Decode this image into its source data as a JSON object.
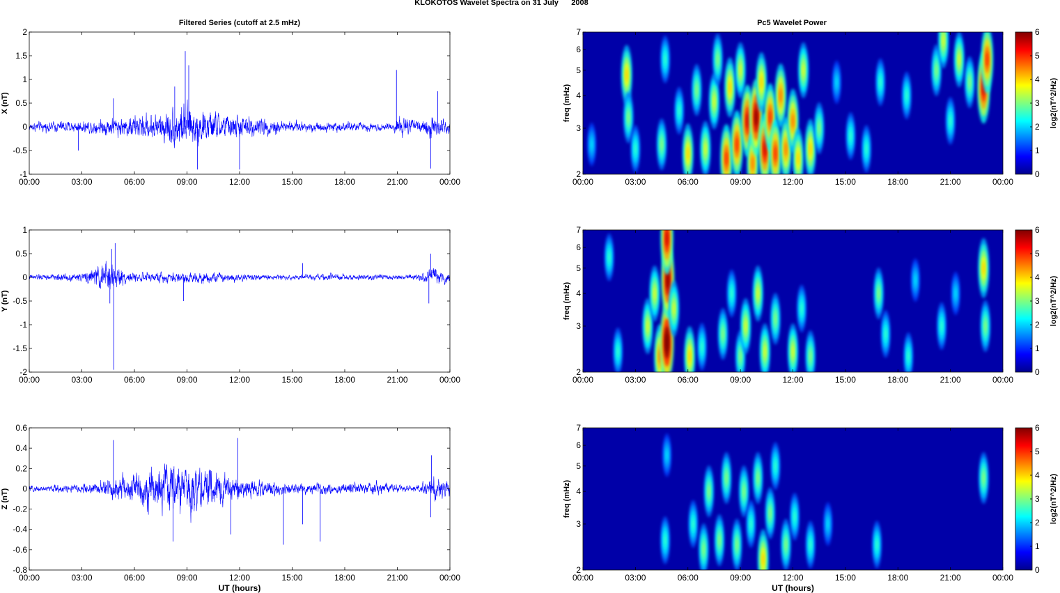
{
  "figure": {
    "title": "KLOKOTOS Wavelet Spectra on 31 July      2008",
    "left_column_title": "Filtered Series (cutoff at 2.5 mHz)",
    "right_column_title": "Pc5 Wavelet Power",
    "xlabel": "UT (hours)"
  },
  "chart_data": [
    {
      "type": "line",
      "panel": "time-series-x",
      "ylabel": "X (nT)",
      "ylim": [
        -1,
        2
      ],
      "yticks": [
        "-1",
        "-0.5",
        "0",
        "0.5",
        "1",
        "1.5",
        "2"
      ],
      "xlim": [
        0,
        24
      ],
      "xticks": [
        "00:00",
        "03:00",
        "06:00",
        "09:00",
        "12:00",
        "15:00",
        "18:00",
        "21:00",
        "00:00"
      ],
      "line_color": "#0000ff",
      "envelope": {
        "x": [
          0,
          1,
          2,
          3,
          4,
          5,
          6,
          7,
          8,
          8.5,
          9,
          9.5,
          10,
          11,
          12,
          13,
          14,
          15,
          16,
          17,
          18,
          19,
          20,
          20.9,
          21,
          21.5,
          22,
          22.5,
          22.8,
          23,
          23.5,
          24
        ],
        "amp": [
          0.12,
          0.13,
          0.15,
          0.15,
          0.2,
          0.25,
          0.3,
          0.35,
          0.45,
          0.55,
          0.6,
          0.5,
          0.45,
          0.35,
          0.3,
          0.25,
          0.2,
          0.15,
          0.14,
          0.13,
          0.13,
          0.12,
          0.1,
          0.12,
          0.3,
          0.25,
          0.15,
          0.15,
          0.3,
          0.4,
          0.25,
          0.2
        ]
      },
      "spikes": [
        {
          "x": 8.9,
          "y": 1.6
        },
        {
          "x": 9.1,
          "y": 1.3
        },
        {
          "x": 8.3,
          "y": 0.85
        },
        {
          "x": 9.6,
          "y": -0.9
        },
        {
          "x": 12.0,
          "y": -0.9
        },
        {
          "x": 20.95,
          "y": 1.2
        },
        {
          "x": 22.9,
          "y": -0.88
        },
        {
          "x": 23.3,
          "y": 0.75
        },
        {
          "x": 4.8,
          "y": 0.6
        },
        {
          "x": 2.8,
          "y": -0.5
        }
      ]
    },
    {
      "type": "line",
      "panel": "time-series-y",
      "ylabel": "Y (nT)",
      "ylim": [
        -2,
        1
      ],
      "yticks": [
        "-2",
        "-1.5",
        "-1",
        "-0.5",
        "0",
        "0.5",
        "1"
      ],
      "xlim": [
        0,
        24
      ],
      "xticks": [
        "00:00",
        "03:00",
        "06:00",
        "09:00",
        "12:00",
        "15:00",
        "18:00",
        "21:00",
        "00:00"
      ],
      "line_color": "#0000ff",
      "envelope": {
        "x": [
          0,
          1,
          2,
          3,
          3.5,
          4,
          4.5,
          5,
          5.5,
          6,
          7,
          8,
          9,
          10,
          11,
          12,
          13,
          14,
          15,
          16,
          17,
          18,
          19,
          20,
          21,
          22,
          22.8,
          23,
          24
        ],
        "amp": [
          0.07,
          0.08,
          0.1,
          0.1,
          0.2,
          0.3,
          0.45,
          0.35,
          0.15,
          0.12,
          0.12,
          0.15,
          0.15,
          0.14,
          0.12,
          0.1,
          0.08,
          0.07,
          0.06,
          0.07,
          0.08,
          0.08,
          0.07,
          0.08,
          0.07,
          0.07,
          0.2,
          0.25,
          0.15
        ]
      },
      "spikes": [
        {
          "x": 4.83,
          "y": -1.95
        },
        {
          "x": 4.9,
          "y": 0.72
        },
        {
          "x": 4.6,
          "y": -0.55
        },
        {
          "x": 4.7,
          "y": 0.6
        },
        {
          "x": 22.8,
          "y": -0.55
        },
        {
          "x": 22.9,
          "y": 0.5
        },
        {
          "x": 8.8,
          "y": -0.5
        },
        {
          "x": 15.6,
          "y": 0.3
        }
      ]
    },
    {
      "type": "line",
      "panel": "time-series-z",
      "ylabel": "Z (nT)",
      "ylim": [
        -0.8,
        0.6
      ],
      "yticks": [
        "-0.8",
        "-0.6",
        "-0.4",
        "-0.2",
        "0",
        "0.2",
        "0.4",
        "0.6"
      ],
      "xlim": [
        0,
        24
      ],
      "xticks": [
        "00:00",
        "03:00",
        "06:00",
        "09:00",
        "12:00",
        "15:00",
        "18:00",
        "21:00",
        "00:00"
      ],
      "xlabel": "UT (hours)",
      "line_color": "#0000ff",
      "envelope": {
        "x": [
          0,
          1,
          2,
          3,
          4,
          5,
          6,
          7,
          8,
          9,
          10,
          11,
          12,
          13,
          14,
          15,
          16,
          17,
          18,
          19,
          20,
          21,
          22,
          22.8,
          23,
          24
        ],
        "amp": [
          0.03,
          0.04,
          0.05,
          0.06,
          0.08,
          0.15,
          0.2,
          0.25,
          0.3,
          0.3,
          0.25,
          0.2,
          0.15,
          0.1,
          0.08,
          0.07,
          0.06,
          0.06,
          0.06,
          0.07,
          0.07,
          0.05,
          0.04,
          0.1,
          0.15,
          0.08
        ]
      },
      "spikes": [
        {
          "x": 4.8,
          "y": 0.48
        },
        {
          "x": 8.2,
          "y": -0.52
        },
        {
          "x": 11.9,
          "y": 0.5
        },
        {
          "x": 11.5,
          "y": -0.45
        },
        {
          "x": 14.5,
          "y": -0.55
        },
        {
          "x": 16.6,
          "y": -0.52
        },
        {
          "x": 15.6,
          "y": -0.35
        },
        {
          "x": 22.95,
          "y": 0.33
        },
        {
          "x": 22.9,
          "y": -0.28
        }
      ]
    },
    {
      "type": "heatmap",
      "panel": "wavelet-power-x",
      "ylabel": "freq (mHz)",
      "ylim": [
        2,
        7
      ],
      "yscale": "log",
      "yticks": [
        "2",
        "3",
        "4",
        "5",
        "6",
        "7"
      ],
      "xlim": [
        0,
        24
      ],
      "xticks": [
        "00:00",
        "03:00",
        "06:00",
        "09:00",
        "12:00",
        "15:00",
        "18:00",
        "21:00",
        "00:00"
      ],
      "colorbar": {
        "label": "log2(nT^2/Hz)",
        "range": [
          0,
          6
        ],
        "ticks": [
          "0",
          "1",
          "2",
          "3",
          "4",
          "5",
          "6"
        ],
        "colormap": "jet"
      },
      "blobs": [
        {
          "t": 2.5,
          "f": 4.8,
          "v": 3.5
        },
        {
          "t": 2.6,
          "f": 3.3,
          "v": 2.5
        },
        {
          "t": 0.5,
          "f": 2.6,
          "v": 1.5
        },
        {
          "t": 3.0,
          "f": 2.5,
          "v": 2.0
        },
        {
          "t": 4.5,
          "f": 2.6,
          "v": 2.5
        },
        {
          "t": 4.7,
          "f": 5.5,
          "v": 2.0
        },
        {
          "t": 5.5,
          "f": 3.5,
          "v": 2.0
        },
        {
          "t": 6.0,
          "f": 2.4,
          "v": 3.5
        },
        {
          "t": 6.5,
          "f": 4.2,
          "v": 2.5
        },
        {
          "t": 7.0,
          "f": 2.5,
          "v": 3.0
        },
        {
          "t": 7.5,
          "f": 3.8,
          "v": 3.0
        },
        {
          "t": 7.7,
          "f": 5.5,
          "v": 2.5
        },
        {
          "t": 8.2,
          "f": 2.3,
          "v": 4.5
        },
        {
          "t": 8.4,
          "f": 4.3,
          "v": 3.5
        },
        {
          "t": 8.8,
          "f": 2.6,
          "v": 4.5
        },
        {
          "t": 9.0,
          "f": 5.0,
          "v": 3.0
        },
        {
          "t": 9.4,
          "f": 3.2,
          "v": 5.0
        },
        {
          "t": 9.7,
          "f": 2.2,
          "v": 4.0
        },
        {
          "t": 9.9,
          "f": 3.3,
          "v": 5.5
        },
        {
          "t": 10.2,
          "f": 4.5,
          "v": 3.5
        },
        {
          "t": 10.4,
          "f": 2.5,
          "v": 5.0
        },
        {
          "t": 10.7,
          "f": 3.3,
          "v": 4.5
        },
        {
          "t": 11.0,
          "f": 2.4,
          "v": 4.5
        },
        {
          "t": 11.3,
          "f": 4.0,
          "v": 4.0
        },
        {
          "t": 11.6,
          "f": 2.5,
          "v": 4.0
        },
        {
          "t": 12.0,
          "f": 3.2,
          "v": 4.0
        },
        {
          "t": 12.3,
          "f": 2.3,
          "v": 3.5
        },
        {
          "t": 12.6,
          "f": 5.0,
          "v": 3.0
        },
        {
          "t": 13.0,
          "f": 2.5,
          "v": 3.5
        },
        {
          "t": 13.5,
          "f": 3.0,
          "v": 2.5
        },
        {
          "t": 14.5,
          "f": 4.5,
          "v": 1.5
        },
        {
          "t": 15.3,
          "f": 2.8,
          "v": 2.0
        },
        {
          "t": 16.2,
          "f": 2.5,
          "v": 2.0
        },
        {
          "t": 17.0,
          "f": 4.5,
          "v": 2.0
        },
        {
          "t": 18.5,
          "f": 4.0,
          "v": 2.0
        },
        {
          "t": 20.2,
          "f": 5.0,
          "v": 2.5
        },
        {
          "t": 20.6,
          "f": 6.5,
          "v": 3.0
        },
        {
          "t": 21.0,
          "f": 3.2,
          "v": 2.0
        },
        {
          "t": 21.5,
          "f": 5.5,
          "v": 3.0
        },
        {
          "t": 22.1,
          "f": 4.5,
          "v": 2.5
        },
        {
          "t": 22.9,
          "f": 4.3,
          "v": 5.0
        },
        {
          "t": 23.1,
          "f": 5.5,
          "v": 4.5
        }
      ]
    },
    {
      "type": "heatmap",
      "panel": "wavelet-power-y",
      "ylabel": "freq (mHz)",
      "ylim": [
        2,
        7
      ],
      "yscale": "log",
      "yticks": [
        "2",
        "3",
        "4",
        "5",
        "6",
        "7"
      ],
      "xlim": [
        0,
        24
      ],
      "xticks": [
        "00:00",
        "03:00",
        "06:00",
        "09:00",
        "12:00",
        "15:00",
        "18:00",
        "21:00",
        "00:00"
      ],
      "colorbar": {
        "label": "log2(nT^2/Hz)",
        "range": [
          0,
          6
        ],
        "ticks": [
          "0",
          "1",
          "2",
          "3",
          "4",
          "5",
          "6"
        ],
        "colormap": "jet"
      },
      "blobs": [
        {
          "t": 1.5,
          "f": 5.5,
          "v": 2.0
        },
        {
          "t": 2.0,
          "f": 2.4,
          "v": 2.0
        },
        {
          "t": 3.7,
          "f": 3.0,
          "v": 3.0
        },
        {
          "t": 4.1,
          "f": 4.0,
          "v": 3.0
        },
        {
          "t": 4.4,
          "f": 2.3,
          "v": 4.0
        },
        {
          "t": 4.8,
          "f": 2.6,
          "v": 6.0
        },
        {
          "t": 4.85,
          "f": 4.5,
          "v": 5.5
        },
        {
          "t": 4.8,
          "f": 6.5,
          "v": 5.0
        },
        {
          "t": 5.2,
          "f": 3.5,
          "v": 3.0
        },
        {
          "t": 6.1,
          "f": 2.3,
          "v": 3.5
        },
        {
          "t": 6.8,
          "f": 2.5,
          "v": 2.0
        },
        {
          "t": 8.0,
          "f": 2.8,
          "v": 2.5
        },
        {
          "t": 8.5,
          "f": 4.0,
          "v": 2.0
        },
        {
          "t": 9.0,
          "f": 2.3,
          "v": 2.5
        },
        {
          "t": 9.3,
          "f": 3.0,
          "v": 3.0
        },
        {
          "t": 10.0,
          "f": 4.0,
          "v": 3.0
        },
        {
          "t": 10.4,
          "f": 2.4,
          "v": 3.0
        },
        {
          "t": 11.0,
          "f": 3.2,
          "v": 2.5
        },
        {
          "t": 12.0,
          "f": 2.4,
          "v": 3.0
        },
        {
          "t": 12.5,
          "f": 3.5,
          "v": 2.0
        },
        {
          "t": 13.0,
          "f": 2.3,
          "v": 2.5
        },
        {
          "t": 16.9,
          "f": 4.0,
          "v": 2.5
        },
        {
          "t": 17.3,
          "f": 2.8,
          "v": 2.0
        },
        {
          "t": 18.6,
          "f": 2.3,
          "v": 2.0
        },
        {
          "t": 19.0,
          "f": 4.5,
          "v": 1.5
        },
        {
          "t": 20.5,
          "f": 3.0,
          "v": 2.0
        },
        {
          "t": 21.3,
          "f": 4.0,
          "v": 1.5
        },
        {
          "t": 22.9,
          "f": 5.0,
          "v": 3.5
        },
        {
          "t": 23.0,
          "f": 3.0,
          "v": 2.5
        }
      ]
    },
    {
      "type": "heatmap",
      "panel": "wavelet-power-z",
      "ylabel": "freq (mHz)",
      "ylim": [
        2,
        7
      ],
      "yscale": "log",
      "yticks": [
        "2",
        "3",
        "4",
        "5",
        "6",
        "7"
      ],
      "xlim": [
        0,
        24
      ],
      "xticks": [
        "00:00",
        "03:00",
        "06:00",
        "09:00",
        "12:00",
        "15:00",
        "18:00",
        "21:00",
        "00:00"
      ],
      "xlabel": "UT (hours)",
      "colorbar": {
        "label": "log2(nT^2/Hz)",
        "range": [
          0,
          6
        ],
        "ticks": [
          "0",
          "1",
          "2",
          "3",
          "4",
          "5",
          "6"
        ],
        "colormap": "jet"
      },
      "blobs": [
        {
          "t": 4.7,
          "f": 2.6,
          "v": 2.0
        },
        {
          "t": 4.8,
          "f": 5.5,
          "v": 1.5
        },
        {
          "t": 6.3,
          "f": 3.0,
          "v": 2.0
        },
        {
          "t": 6.9,
          "f": 2.4,
          "v": 2.5
        },
        {
          "t": 7.2,
          "f": 4.0,
          "v": 2.5
        },
        {
          "t": 7.8,
          "f": 2.6,
          "v": 2.5
        },
        {
          "t": 8.2,
          "f": 4.5,
          "v": 2.5
        },
        {
          "t": 8.8,
          "f": 2.5,
          "v": 2.5
        },
        {
          "t": 9.2,
          "f": 4.0,
          "v": 2.5
        },
        {
          "t": 9.6,
          "f": 3.0,
          "v": 2.0
        },
        {
          "t": 10.0,
          "f": 4.5,
          "v": 2.5
        },
        {
          "t": 10.3,
          "f": 2.2,
          "v": 3.5
        },
        {
          "t": 10.7,
          "f": 3.3,
          "v": 2.5
        },
        {
          "t": 11.0,
          "f": 5.0,
          "v": 2.0
        },
        {
          "t": 11.6,
          "f": 2.5,
          "v": 2.5
        },
        {
          "t": 12.1,
          "f": 3.2,
          "v": 2.0
        },
        {
          "t": 13.0,
          "f": 2.5,
          "v": 2.0
        },
        {
          "t": 14.0,
          "f": 3.0,
          "v": 1.5
        },
        {
          "t": 16.8,
          "f": 2.5,
          "v": 2.0
        },
        {
          "t": 22.9,
          "f": 4.5,
          "v": 2.5
        }
      ]
    }
  ]
}
